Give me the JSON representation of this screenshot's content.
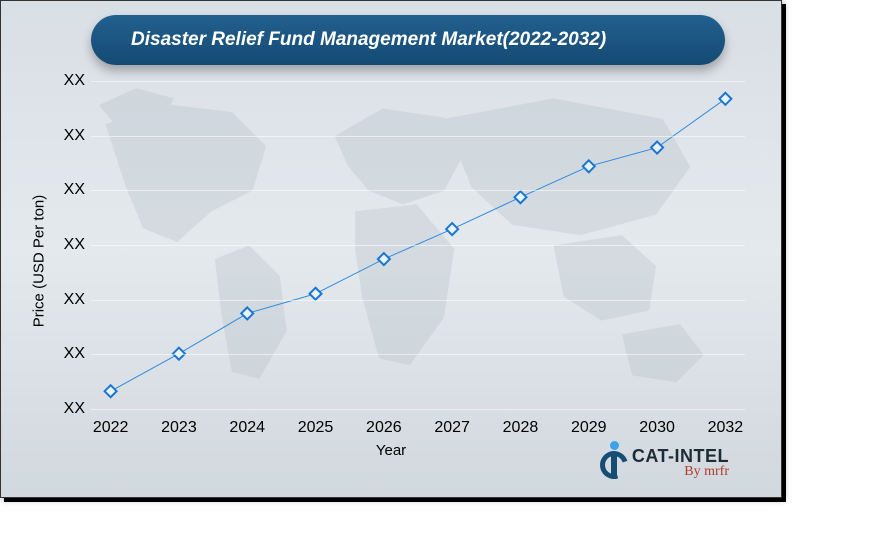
{
  "title": "Disaster Relief Fund Management Market(2022-2032)",
  "axes": {
    "y_title": "Price (USD Per ton)",
    "x_title": "Year",
    "y_tick_label": "XX",
    "y_tick_count": 7,
    "title_fontsize": 19,
    "axis_title_fontsize": 15,
    "tick_fontsize": 16
  },
  "chart": {
    "type": "line",
    "line_color": "#2a8be0",
    "line_width": 3,
    "marker_shape": "diamond",
    "marker_size": 12,
    "marker_stroke": "#1976d2",
    "marker_fill": "#e9f3fb",
    "marker_stroke_width": 2,
    "grid_color": "rgba(255,255,255,0.55)",
    "background_gradient": [
      "#d8dfe5",
      "#e4e9ed",
      "#d1d8de"
    ],
    "categories": [
      "2022",
      "2023",
      "2024",
      "2025",
      "2026",
      "2027",
      "2028",
      "2029",
      "2030",
      "2032"
    ],
    "values": [
      0.38,
      1.18,
      2.04,
      2.46,
      3.2,
      3.84,
      4.52,
      5.18,
      5.58,
      6.62
    ],
    "y_domain": [
      0,
      7
    ],
    "x_range_pct": [
      3,
      97
    ]
  },
  "logo": {
    "line1": "CAT-INTEL",
    "line2": "By mrfr",
    "brand_dark": "#174c75",
    "brand_accent": "#3aa5e6",
    "brand_script": "#b33a2c"
  },
  "map_fill": "#aeb9c2"
}
